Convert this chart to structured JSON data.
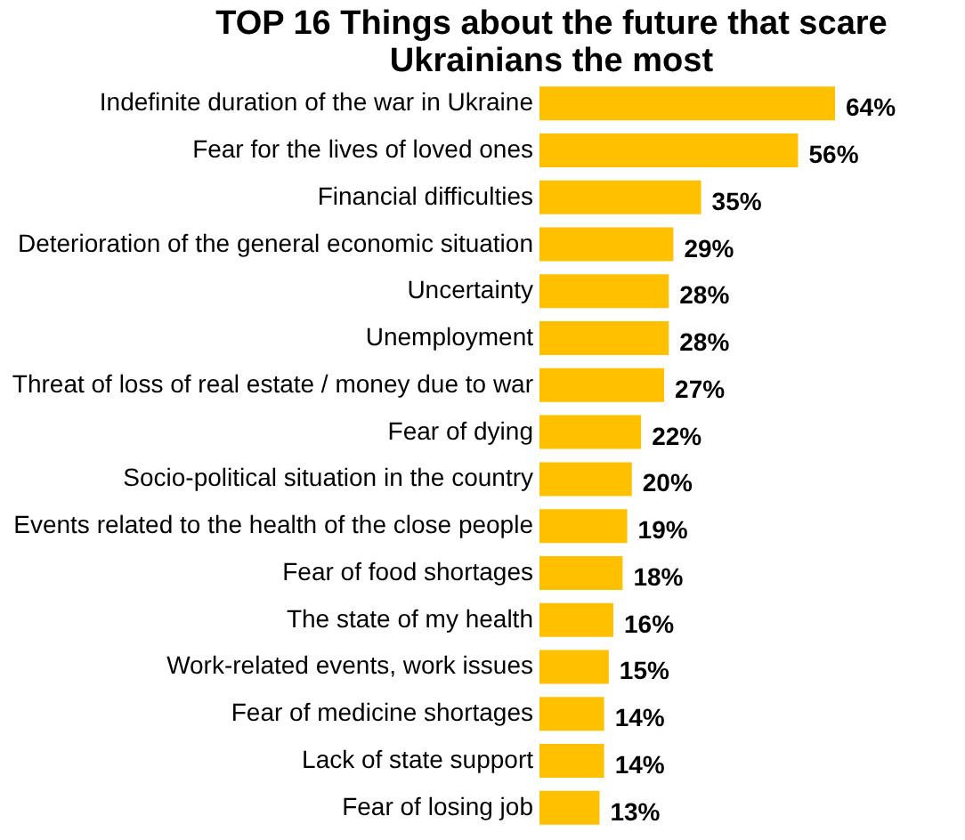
{
  "chart_data": {
    "type": "bar",
    "orientation": "horizontal",
    "title": "TOP 16 Things about the future that scare\nUkrainians the most",
    "categories": [
      "Indefinite duration of the war in Ukraine",
      "Fear for the lives of loved ones",
      "Financial difficulties",
      "Deterioration of the general economic situation",
      "Uncertainty",
      "Unemployment",
      "Threat of loss of real estate / money due to war",
      "Fear of dying",
      "Socio-political situation in the country",
      "Events related to the health of the close people",
      "Fear of food shortages",
      "The state of my health",
      "Work-related events, work issues",
      "Fear of medicine shortages",
      "Lack of state support",
      "Fear of losing job"
    ],
    "values": [
      64,
      56,
      35,
      29,
      28,
      28,
      27,
      22,
      20,
      19,
      18,
      16,
      15,
      14,
      14,
      13
    ],
    "value_labels": [
      "64%",
      "56%",
      "35%",
      "29%",
      "28%",
      "28%",
      "27%",
      "22%",
      "20%",
      "19%",
      "18%",
      "16%",
      "15%",
      "14%",
      "14%",
      "13%"
    ],
    "color": "#ffc000"
  }
}
